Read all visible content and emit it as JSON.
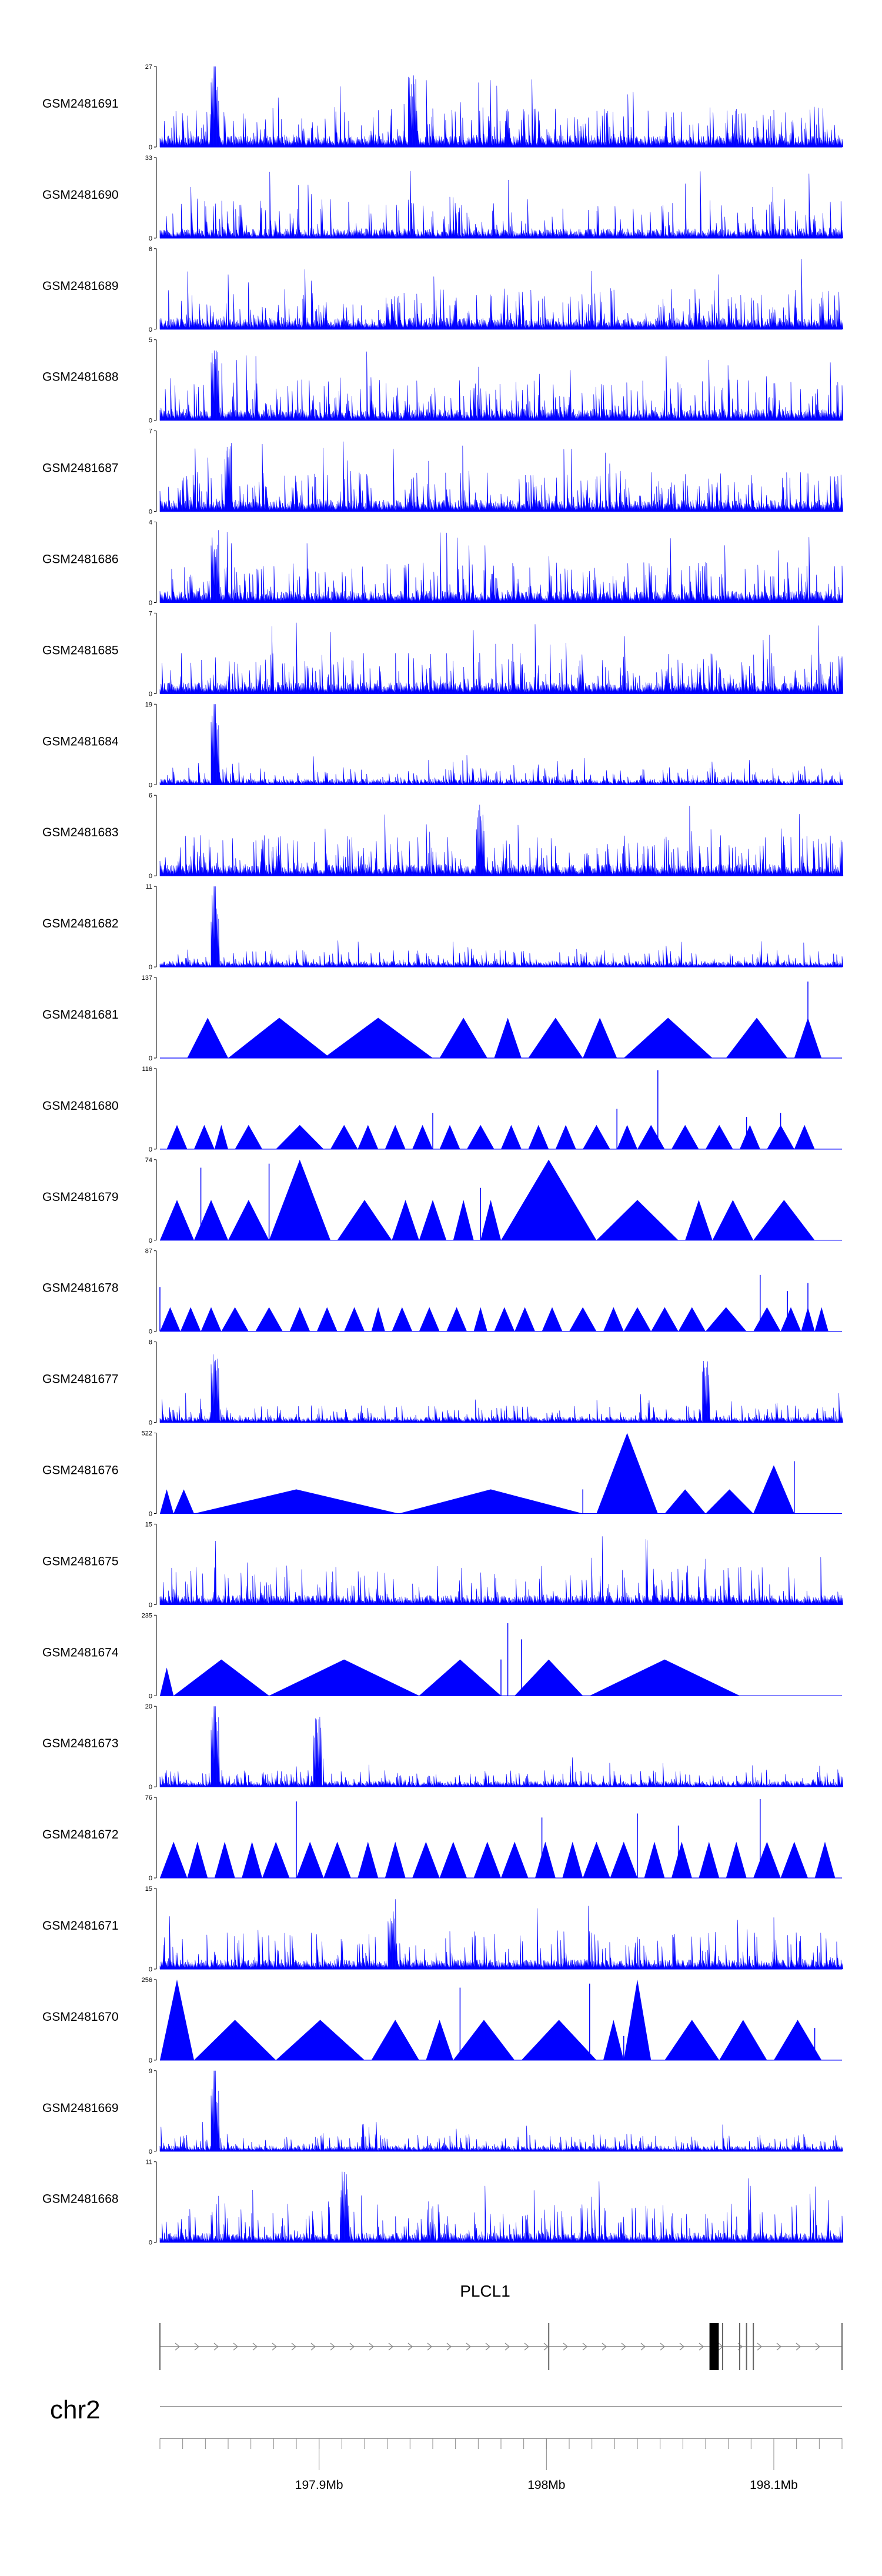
{
  "chart_data": {
    "type": "genome-track-area",
    "series": [
      {
        "name": "GSM2481691",
        "ymax": 27,
        "ymin": 0,
        "style": "dense",
        "peaks": [
          0.08,
          0.37
        ],
        "spike": 0.08
      },
      {
        "name": "GSM2481690",
        "ymax": 33,
        "ymin": 0,
        "style": "medium",
        "peaks": [],
        "spike": null
      },
      {
        "name": "GSM2481689",
        "ymax": 6,
        "ymin": 0,
        "style": "dense",
        "peaks": [],
        "spike": null
      },
      {
        "name": "GSM2481688",
        "ymax": 5,
        "ymin": 0,
        "style": "dense",
        "peaks": [
          0.08
        ],
        "spike": null
      },
      {
        "name": "GSM2481687",
        "ymax": 7,
        "ymin": 0,
        "style": "dense",
        "peaks": [
          0.1
        ],
        "spike": null
      },
      {
        "name": "GSM2481686",
        "ymax": 4,
        "ymin": 0,
        "style": "dense",
        "peaks": [
          0.08
        ],
        "spike": null
      },
      {
        "name": "GSM2481685",
        "ymax": 7,
        "ymin": 0,
        "style": "dense",
        "peaks": [],
        "spike": null
      },
      {
        "name": "GSM2481684",
        "ymax": 19,
        "ymin": 0,
        "style": "low",
        "peaks": [
          0.08
        ],
        "spike": 0.08
      },
      {
        "name": "GSM2481683",
        "ymax": 6,
        "ymin": 0,
        "style": "dense",
        "peaks": [
          0.47
        ],
        "spike": null
      },
      {
        "name": "GSM2481682",
        "ymax": 11,
        "ymin": 0,
        "style": "low",
        "peaks": [
          0.08
        ],
        "spike": 0.08
      },
      {
        "name": "GSM2481681",
        "ymax": 137,
        "ymin": 0,
        "style": "sparse",
        "tri": [
          [
            0.04,
            0.1,
            0.5
          ],
          [
            0.1,
            0.25,
            0.5
          ],
          [
            0.24,
            0.4,
            0.5
          ],
          [
            0.41,
            0.48,
            0.5
          ],
          [
            0.49,
            0.53,
            0.5
          ],
          [
            0.54,
            0.62,
            0.5
          ],
          [
            0.62,
            0.67,
            0.5
          ],
          [
            0.68,
            0.81,
            0.5
          ],
          [
            0.83,
            0.92,
            0.5
          ],
          [
            0.93,
            0.97,
            0.5
          ]
        ],
        "spikes": [
          [
            0.95,
            0.95
          ]
        ]
      },
      {
        "name": "GSM2481680",
        "ymax": 116,
        "ymin": 0,
        "style": "sparse",
        "tri": [
          [
            0.01,
            0.04,
            0.3
          ],
          [
            0.05,
            0.08,
            0.3
          ],
          [
            0.08,
            0.1,
            0.3
          ],
          [
            0.11,
            0.15,
            0.3
          ],
          [
            0.17,
            0.24,
            0.3
          ],
          [
            0.25,
            0.29,
            0.3
          ],
          [
            0.29,
            0.32,
            0.3
          ],
          [
            0.33,
            0.36,
            0.3
          ],
          [
            0.37,
            0.4,
            0.3
          ],
          [
            0.41,
            0.44,
            0.3
          ],
          [
            0.45,
            0.49,
            0.3
          ],
          [
            0.5,
            0.53,
            0.3
          ],
          [
            0.54,
            0.57,
            0.3
          ],
          [
            0.58,
            0.61,
            0.3
          ],
          [
            0.62,
            0.66,
            0.3
          ],
          [
            0.67,
            0.7,
            0.3
          ],
          [
            0.7,
            0.74,
            0.3
          ],
          [
            0.75,
            0.79,
            0.3
          ],
          [
            0.8,
            0.84,
            0.3
          ],
          [
            0.85,
            0.88,
            0.3
          ],
          [
            0.89,
            0.93,
            0.3
          ],
          [
            0.93,
            0.96,
            0.3
          ]
        ],
        "spikes": [
          [
            0.73,
            0.98
          ],
          [
            0.4,
            0.45
          ],
          [
            0.67,
            0.5
          ],
          [
            0.86,
            0.4
          ],
          [
            0.91,
            0.45
          ]
        ]
      },
      {
        "name": "GSM2481679",
        "ymax": 74,
        "ymin": 0,
        "style": "sparse",
        "tri": [
          [
            0.0,
            0.05,
            0.5
          ],
          [
            0.05,
            0.1,
            0.5
          ],
          [
            0.1,
            0.16,
            0.5
          ],
          [
            0.16,
            0.25,
            1.0
          ],
          [
            0.26,
            0.34,
            0.5
          ],
          [
            0.34,
            0.38,
            0.5
          ],
          [
            0.38,
            0.42,
            0.5
          ],
          [
            0.43,
            0.46,
            0.5
          ],
          [
            0.47,
            0.5,
            0.5
          ],
          [
            0.5,
            0.64,
            1.0
          ],
          [
            0.64,
            0.76,
            0.5
          ],
          [
            0.77,
            0.81,
            0.5
          ],
          [
            0.81,
            0.87,
            0.5
          ],
          [
            0.87,
            0.96,
            0.5
          ]
        ],
        "spikes": [
          [
            0.06,
            0.9
          ],
          [
            0.16,
            0.95
          ],
          [
            0.47,
            0.65
          ]
        ]
      },
      {
        "name": "GSM2481678",
        "ymax": 87,
        "ymin": 0,
        "style": "sparse",
        "tri": [
          [
            0.0,
            0.03,
            0.3
          ],
          [
            0.03,
            0.06,
            0.3
          ],
          [
            0.06,
            0.09,
            0.3
          ],
          [
            0.09,
            0.13,
            0.3
          ],
          [
            0.14,
            0.18,
            0.3
          ],
          [
            0.19,
            0.22,
            0.3
          ],
          [
            0.23,
            0.26,
            0.3
          ],
          [
            0.27,
            0.3,
            0.3
          ],
          [
            0.31,
            0.33,
            0.3
          ],
          [
            0.34,
            0.37,
            0.3
          ],
          [
            0.38,
            0.41,
            0.3
          ],
          [
            0.42,
            0.45,
            0.3
          ],
          [
            0.46,
            0.48,
            0.3
          ],
          [
            0.49,
            0.52,
            0.3
          ],
          [
            0.52,
            0.55,
            0.3
          ],
          [
            0.56,
            0.59,
            0.3
          ],
          [
            0.6,
            0.64,
            0.3
          ],
          [
            0.65,
            0.68,
            0.3
          ],
          [
            0.68,
            0.72,
            0.3
          ],
          [
            0.72,
            0.76,
            0.3
          ],
          [
            0.76,
            0.8,
            0.3
          ],
          [
            0.8,
            0.86,
            0.3
          ],
          [
            0.87,
            0.91,
            0.3
          ],
          [
            0.91,
            0.94,
            0.3
          ],
          [
            0.94,
            0.96,
            0.3
          ],
          [
            0.96,
            0.98,
            0.3
          ]
        ],
        "spikes": [
          [
            0.0,
            0.55
          ],
          [
            0.88,
            0.7
          ],
          [
            0.92,
            0.5
          ],
          [
            0.95,
            0.6
          ]
        ]
      },
      {
        "name": "GSM2481677",
        "ymax": 8,
        "ymin": 0,
        "style": "low",
        "peaks": [
          0.08,
          0.8
        ],
        "spike": null
      },
      {
        "name": "GSM2481676",
        "ymax": 522,
        "ymin": 0,
        "style": "sparse",
        "tri": [
          [
            0.0,
            0.02,
            0.3
          ],
          [
            0.02,
            0.05,
            0.3
          ],
          [
            0.05,
            0.35,
            0.3
          ],
          [
            0.35,
            0.62,
            0.3
          ],
          [
            0.64,
            0.73,
            1.0
          ],
          [
            0.74,
            0.8,
            0.3
          ],
          [
            0.8,
            0.87,
            0.3
          ],
          [
            0.87,
            0.93,
            0.6
          ]
        ],
        "spikes": [
          [
            0.62,
            0.3
          ],
          [
            0.93,
            0.65
          ]
        ]
      },
      {
        "name": "GSM2481675",
        "ymax": 15,
        "ymin": 0,
        "style": "medium",
        "peaks": [],
        "spike": null
      },
      {
        "name": "GSM2481674",
        "ymax": 235,
        "ymin": 0,
        "style": "sparse",
        "tri": [
          [
            0.0,
            0.02,
            0.35
          ],
          [
            0.02,
            0.16,
            0.45
          ],
          [
            0.16,
            0.38,
            0.45
          ],
          [
            0.38,
            0.5,
            0.45
          ],
          [
            0.52,
            0.62,
            0.45
          ],
          [
            0.63,
            0.85,
            0.45
          ]
        ],
        "spikes": [
          [
            0.51,
            0.9
          ],
          [
            0.53,
            0.7
          ],
          [
            0.5,
            0.45
          ]
        ]
      },
      {
        "name": "GSM2481673",
        "ymax": 20,
        "ymin": 0,
        "style": "low",
        "peaks": [
          0.08,
          0.23
        ],
        "spike": 0.08
      },
      {
        "name": "GSM2481672",
        "ymax": 76,
        "ymin": 0,
        "style": "sparse",
        "tri": [
          [
            0.0,
            0.04,
            0.45
          ],
          [
            0.04,
            0.07,
            0.45
          ],
          [
            0.08,
            0.11,
            0.45
          ],
          [
            0.12,
            0.15,
            0.45
          ],
          [
            0.15,
            0.19,
            0.45
          ],
          [
            0.2,
            0.24,
            0.45
          ],
          [
            0.24,
            0.28,
            0.45
          ],
          [
            0.29,
            0.32,
            0.45
          ],
          [
            0.33,
            0.36,
            0.45
          ],
          [
            0.37,
            0.41,
            0.45
          ],
          [
            0.41,
            0.45,
            0.45
          ],
          [
            0.46,
            0.5,
            0.45
          ],
          [
            0.5,
            0.54,
            0.45
          ],
          [
            0.55,
            0.58,
            0.45
          ],
          [
            0.59,
            0.62,
            0.45
          ],
          [
            0.62,
            0.66,
            0.45
          ],
          [
            0.66,
            0.7,
            0.45
          ],
          [
            0.71,
            0.74,
            0.45
          ],
          [
            0.75,
            0.78,
            0.45
          ],
          [
            0.79,
            0.82,
            0.45
          ],
          [
            0.83,
            0.86,
            0.45
          ],
          [
            0.87,
            0.91,
            0.45
          ],
          [
            0.91,
            0.95,
            0.45
          ],
          [
            0.96,
            0.99,
            0.45
          ]
        ],
        "spikes": [
          [
            0.2,
            0.95
          ],
          [
            0.88,
            0.98
          ],
          [
            0.56,
            0.75
          ],
          [
            0.7,
            0.8
          ],
          [
            0.76,
            0.65
          ]
        ]
      },
      {
        "name": "GSM2481671",
        "ymax": 15,
        "ymin": 0,
        "style": "medium",
        "peaks": [
          0.34
        ],
        "spike": null
      },
      {
        "name": "GSM2481670",
        "ymax": 256,
        "ymin": 0,
        "style": "sparse",
        "tri": [
          [
            0.0,
            0.05,
            1.0
          ],
          [
            0.05,
            0.17,
            0.5
          ],
          [
            0.17,
            0.3,
            0.5
          ],
          [
            0.31,
            0.38,
            0.5
          ],
          [
            0.39,
            0.43,
            0.5
          ],
          [
            0.43,
            0.52,
            0.5
          ],
          [
            0.53,
            0.64,
            0.5
          ],
          [
            0.65,
            0.68,
            0.5
          ],
          [
            0.68,
            0.72,
            1.0
          ],
          [
            0.74,
            0.82,
            0.5
          ],
          [
            0.82,
            0.89,
            0.5
          ],
          [
            0.9,
            0.97,
            0.5
          ]
        ],
        "spikes": [
          [
            0.44,
            0.9
          ],
          [
            0.63,
            0.95
          ],
          [
            0.68,
            0.3
          ],
          [
            0.96,
            0.4
          ]
        ]
      },
      {
        "name": "GSM2481669",
        "ymax": 9,
        "ymin": 0,
        "style": "low",
        "peaks": [
          0.08
        ],
        "spike": 0.08
      },
      {
        "name": "GSM2481668",
        "ymax": 11,
        "ymin": 0,
        "style": "medium",
        "peaks": [
          0.27
        ],
        "spike": null
      }
    ],
    "gene": {
      "name": "PLCL1",
      "strand": "+",
      "exons": [
        0.0,
        0.57,
        0.81,
        0.815,
        0.825,
        0.85,
        0.86,
        0.87,
        1.0
      ]
    },
    "chromosome": "chr2",
    "axis": {
      "xlim": [
        197.83,
        198.13
      ],
      "tick_labels": [
        "197.9Mb",
        "198Mb",
        "198.1Mb"
      ],
      "tick_values": [
        197.9,
        198.0,
        198.1
      ],
      "minor_step": 0.01
    },
    "color": "#0000ff"
  }
}
